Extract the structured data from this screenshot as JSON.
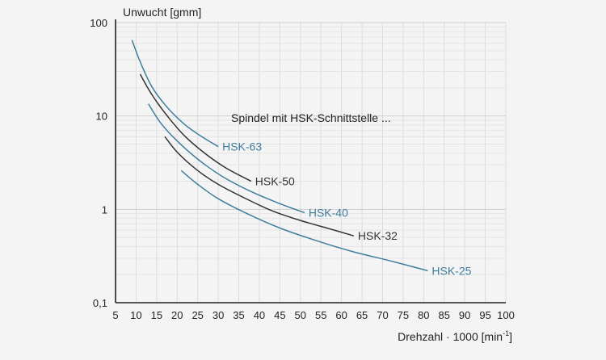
{
  "chart_data": {
    "type": "line",
    "y_scale": "log",
    "xlabel": "Drehzahl · 1000 [min",
    "xlabel_superscript": "-1",
    "xlabel_suffix": "]",
    "ylabel": "Unwucht [gmm]",
    "xlim": [
      5,
      100
    ],
    "ylim": [
      0.1,
      100
    ],
    "x_ticks": [
      "5",
      "10",
      "15",
      "20",
      "25",
      "30",
      "35",
      "40",
      "45",
      "50",
      "55",
      "60",
      "65",
      "70",
      "75",
      "80",
      "85",
      "90",
      "95",
      "100"
    ],
    "y_ticks": [
      "0,1",
      "1",
      "10",
      "100"
    ],
    "grid": true,
    "annotation": "Spindel mit HSK-Schnittstelle ...",
    "series": [
      {
        "name": "HSK-63",
        "color": "#3f7e9c",
        "x": [
          9,
          11,
          14,
          18,
          22,
          26,
          30
        ],
        "y": [
          65,
          38,
          20,
          11.8,
          8.0,
          6.0,
          4.7
        ]
      },
      {
        "name": "HSK-50",
        "color": "#333333",
        "x": [
          11,
          14,
          18,
          22,
          27,
          32,
          38
        ],
        "y": [
          28,
          16.5,
          9.5,
          6.0,
          3.9,
          2.75,
          2.0
        ]
      },
      {
        "name": "HSK-40",
        "color": "#3f7e9c",
        "x": [
          13,
          16,
          20,
          25,
          31,
          38,
          45,
          51
        ],
        "y": [
          13.5,
          8.4,
          5.4,
          3.45,
          2.25,
          1.55,
          1.15,
          0.92
        ]
      },
      {
        "name": "HSK-32",
        "color": "#333333",
        "x": [
          17,
          20,
          25,
          30,
          36,
          43,
          50,
          57,
          63
        ],
        "y": [
          6.0,
          4.1,
          2.6,
          1.85,
          1.35,
          0.97,
          0.76,
          0.62,
          0.52
        ]
      },
      {
        "name": "HSK-25",
        "color": "#3f7e9c",
        "x": [
          21,
          25,
          30,
          37,
          45,
          54,
          63,
          72,
          81
        ],
        "y": [
          2.6,
          1.85,
          1.3,
          0.9,
          0.63,
          0.46,
          0.35,
          0.28,
          0.22
        ]
      }
    ]
  }
}
